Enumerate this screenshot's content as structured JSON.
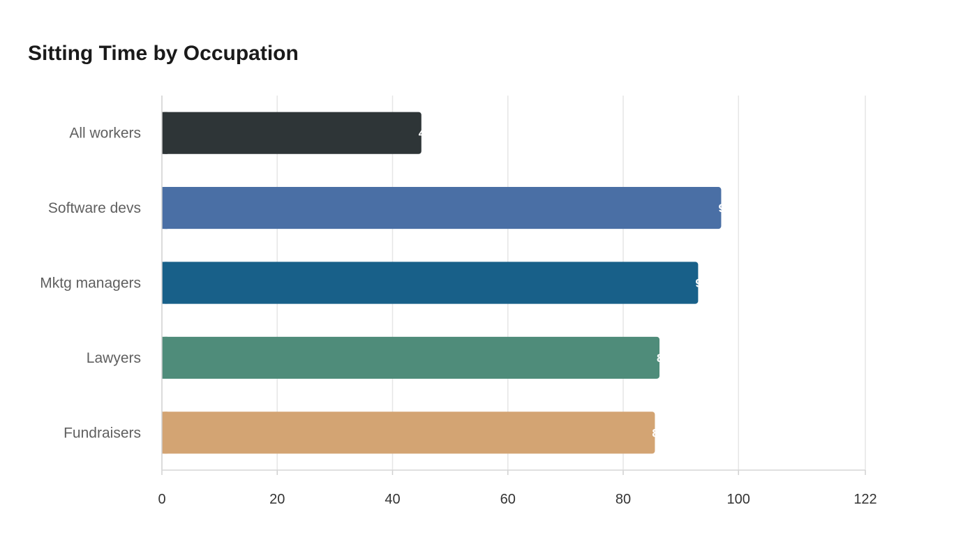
{
  "chart_data": {
    "type": "bar",
    "orientation": "horizontal",
    "title": "Sitting Time by Occupation",
    "xlabel": "",
    "ylabel": "",
    "categories": [
      "All workers",
      "Software devs",
      "Mktg managers",
      "Lawyers",
      "Fundraisers"
    ],
    "values": [
      45,
      97,
      93,
      86.3,
      85.5
    ],
    "colors": [
      "#2e3537",
      "#4a6fa5",
      "#186089",
      "#4f8c7a",
      "#d3a473"
    ],
    "xlim": [
      0,
      122
    ],
    "xticks": [
      0,
      20,
      40,
      60,
      80,
      100,
      122
    ],
    "grid": true,
    "legend": "none"
  }
}
